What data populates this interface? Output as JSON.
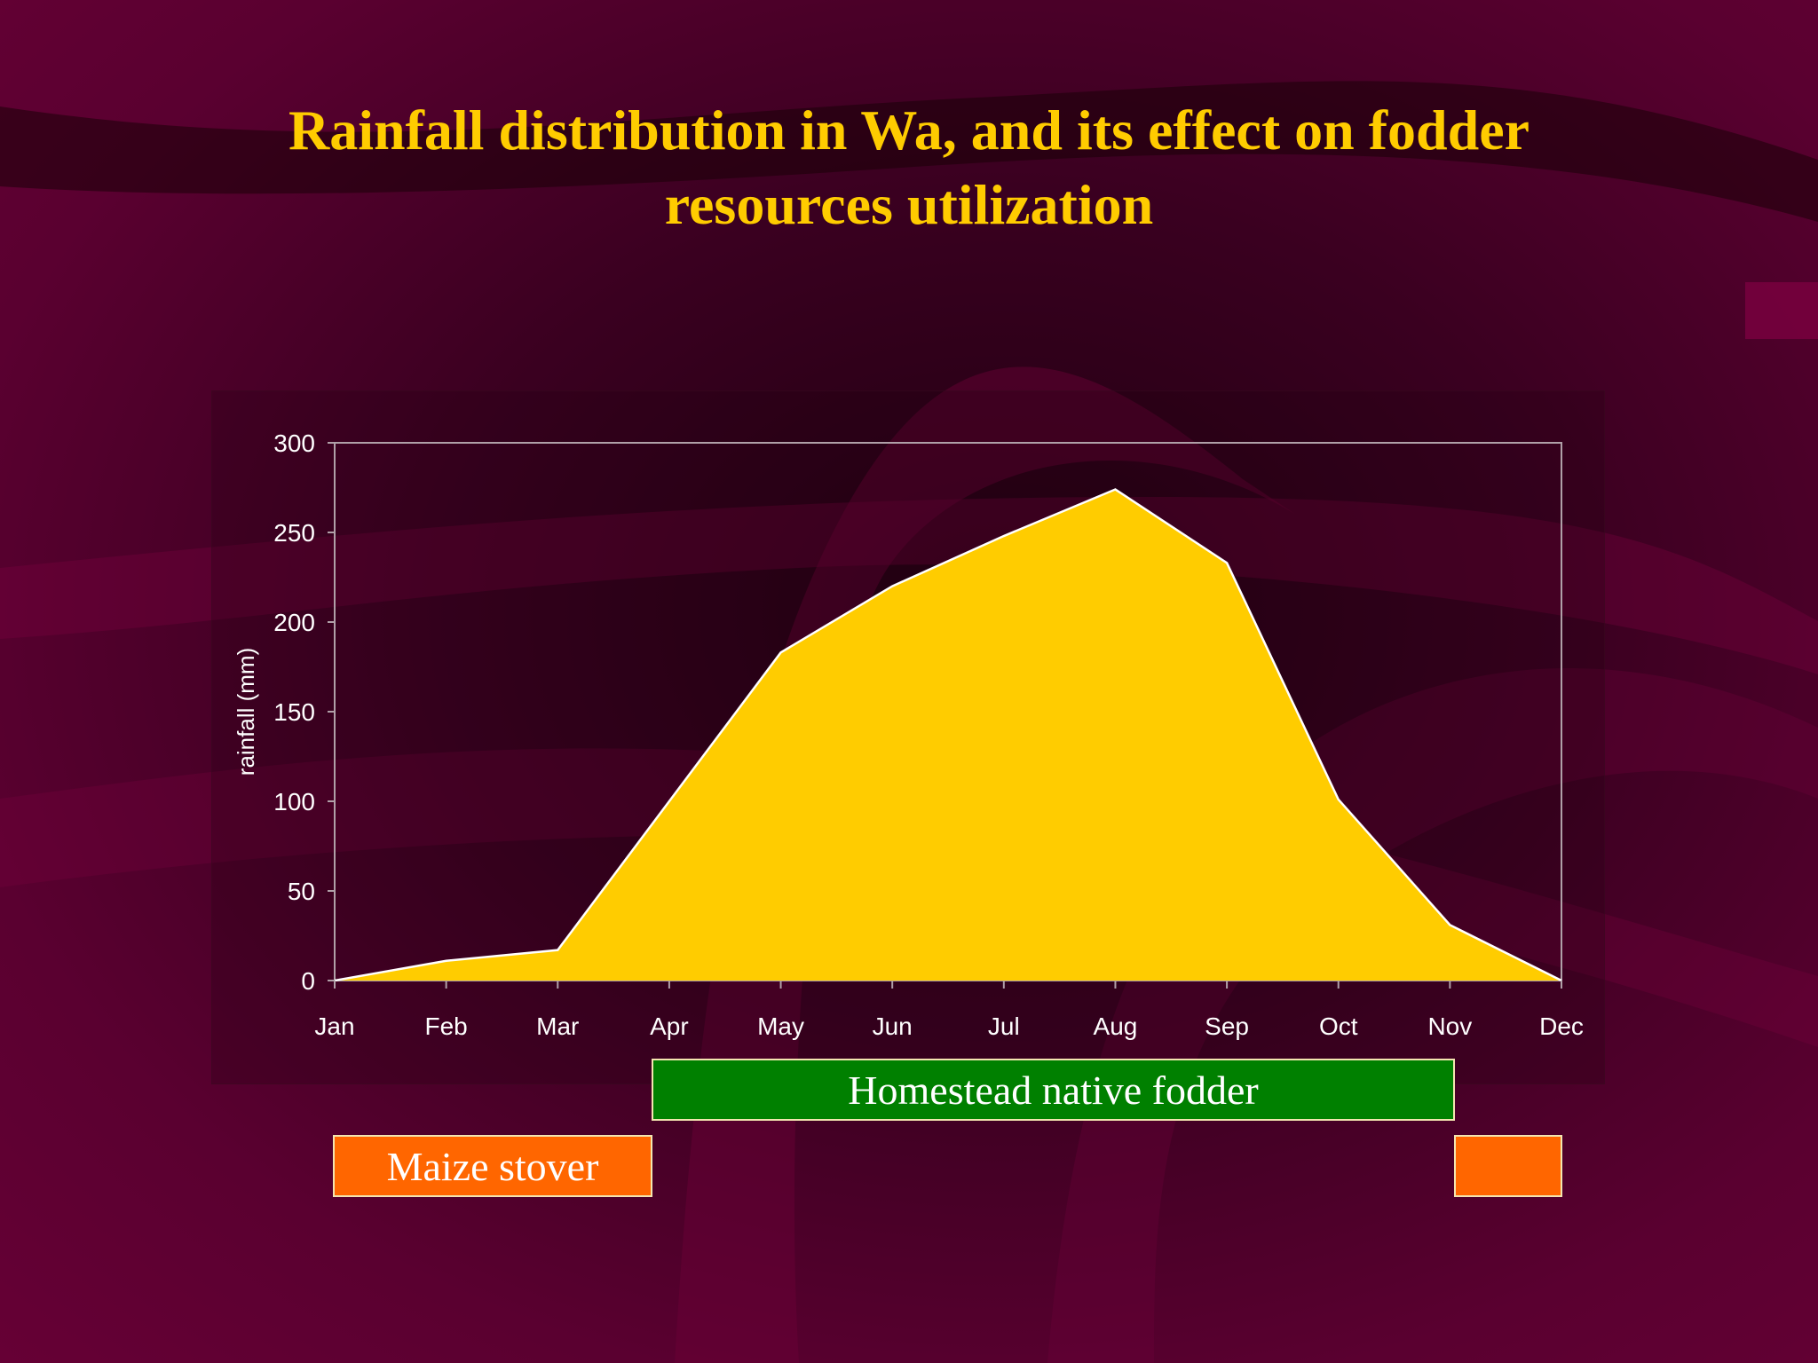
{
  "slide": {
    "title_line1": "Rainfall distribution in Wa, and its effect on fodder",
    "title_line2": "resources utilization",
    "accent_color": "#ffcc00"
  },
  "chart_data": {
    "type": "area",
    "title": "",
    "xlabel": "",
    "ylabel": "rainfall (mm)",
    "categories": [
      "Jan",
      "Feb",
      "Mar",
      "Apr",
      "May",
      "Jun",
      "Jul",
      "Aug",
      "Sep",
      "Oct",
      "Nov",
      "Dec"
    ],
    "series": [
      {
        "values": [
          0,
          11,
          17,
          100,
          183,
          220,
          248,
          274,
          233,
          101,
          31,
          0
        ]
      }
    ],
    "yticks": [
      0,
      50,
      100,
      150,
      200,
      250,
      300
    ],
    "ylim": [
      0,
      300
    ],
    "grid": false,
    "legend": "none",
    "fill_color": "#ffcc00",
    "line_color": "#ffffff"
  },
  "bands": {
    "homestead": {
      "label": "Homestead native fodder",
      "color": "#008000",
      "start_month": "Apr",
      "end_month": "Nov"
    },
    "maize_1": {
      "label": "Maize stover",
      "color": "#ff6600",
      "start_month": "Jan",
      "end_month": "Apr"
    },
    "maize_2": {
      "label": "",
      "color": "#ff6600",
      "start_month": "Nov",
      "end_month": "Dec"
    }
  }
}
